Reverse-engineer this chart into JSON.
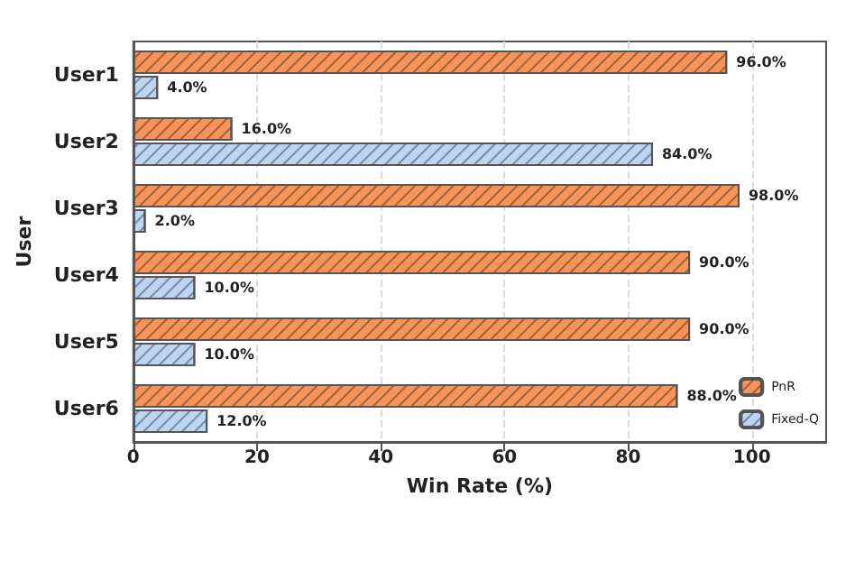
{
  "chart_data": {
    "type": "bar",
    "orientation": "horizontal",
    "xlabel": "Win Rate (%)",
    "ylabel": "User",
    "categories": [
      "User1",
      "User2",
      "User3",
      "User4",
      "User5",
      "User6"
    ],
    "series": [
      {
        "name": "PnR",
        "color": "#f79459",
        "values": [
          96,
          16,
          98,
          90,
          90,
          88
        ],
        "value_labels": [
          "96.0%",
          "16.0%",
          "98.0%",
          "90.0%",
          "90.0%",
          "88.0%"
        ]
      },
      {
        "name": "Fixed-Q",
        "color": "#bcd5f2",
        "values": [
          4,
          84,
          2,
          10,
          10,
          12
        ],
        "value_labels": [
          "4.0%",
          "84.0%",
          "2.0%",
          "10.0%",
          "10.0%",
          "12.0%"
        ]
      }
    ],
    "xlim": [
      0,
      112
    ],
    "xticks": [
      0,
      20,
      40,
      60,
      80,
      100
    ],
    "grid": "x",
    "legend": "bottom right"
  }
}
